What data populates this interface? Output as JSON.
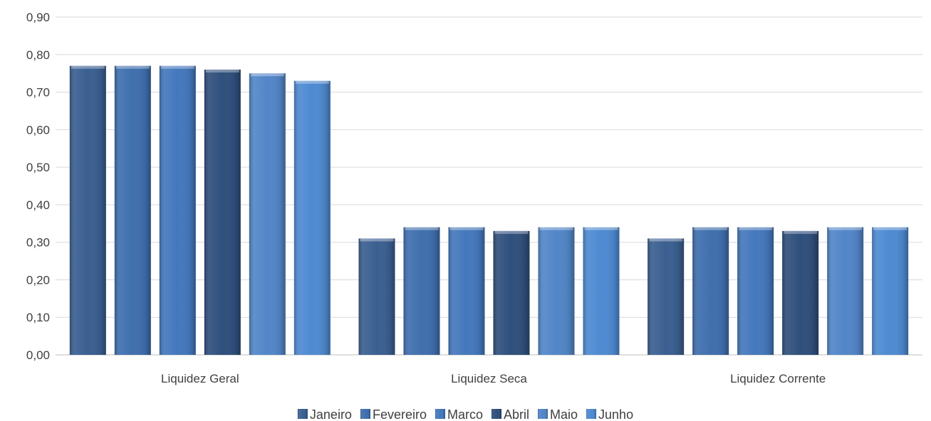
{
  "chart_data": {
    "type": "bar",
    "title": "",
    "xlabel": "",
    "ylabel": "",
    "categories": [
      "Liquidez Geral",
      "Liquidez Seca",
      "Liquidez Corrente"
    ],
    "series": [
      {
        "name": "Janeiro",
        "values": [
          0.77,
          0.31,
          0.31
        ],
        "color": "#3a5f91"
      },
      {
        "name": "Fevereiro",
        "values": [
          0.77,
          0.34,
          0.34
        ],
        "color": "#3f6fae"
      },
      {
        "name": "Marco",
        "values": [
          0.77,
          0.34,
          0.34
        ],
        "color": "#4478bd"
      },
      {
        "name": "Abril",
        "values": [
          0.76,
          0.33,
          0.33
        ],
        "color": "#2f4f7c"
      },
      {
        "name": "Maio",
        "values": [
          0.75,
          0.34,
          0.34
        ],
        "color": "#5286c9"
      },
      {
        "name": "Junho",
        "values": [
          0.73,
          0.34,
          0.34
        ],
        "color": "#4e8ad2"
      }
    ],
    "ylim": [
      0,
      0.9
    ],
    "yticks": [
      "0,00",
      "0,10",
      "0,20",
      "0,30",
      "0,40",
      "0,50",
      "0,60",
      "0,70",
      "0,80",
      "0,90"
    ],
    "grid": true,
    "legend_position": "bottom"
  }
}
